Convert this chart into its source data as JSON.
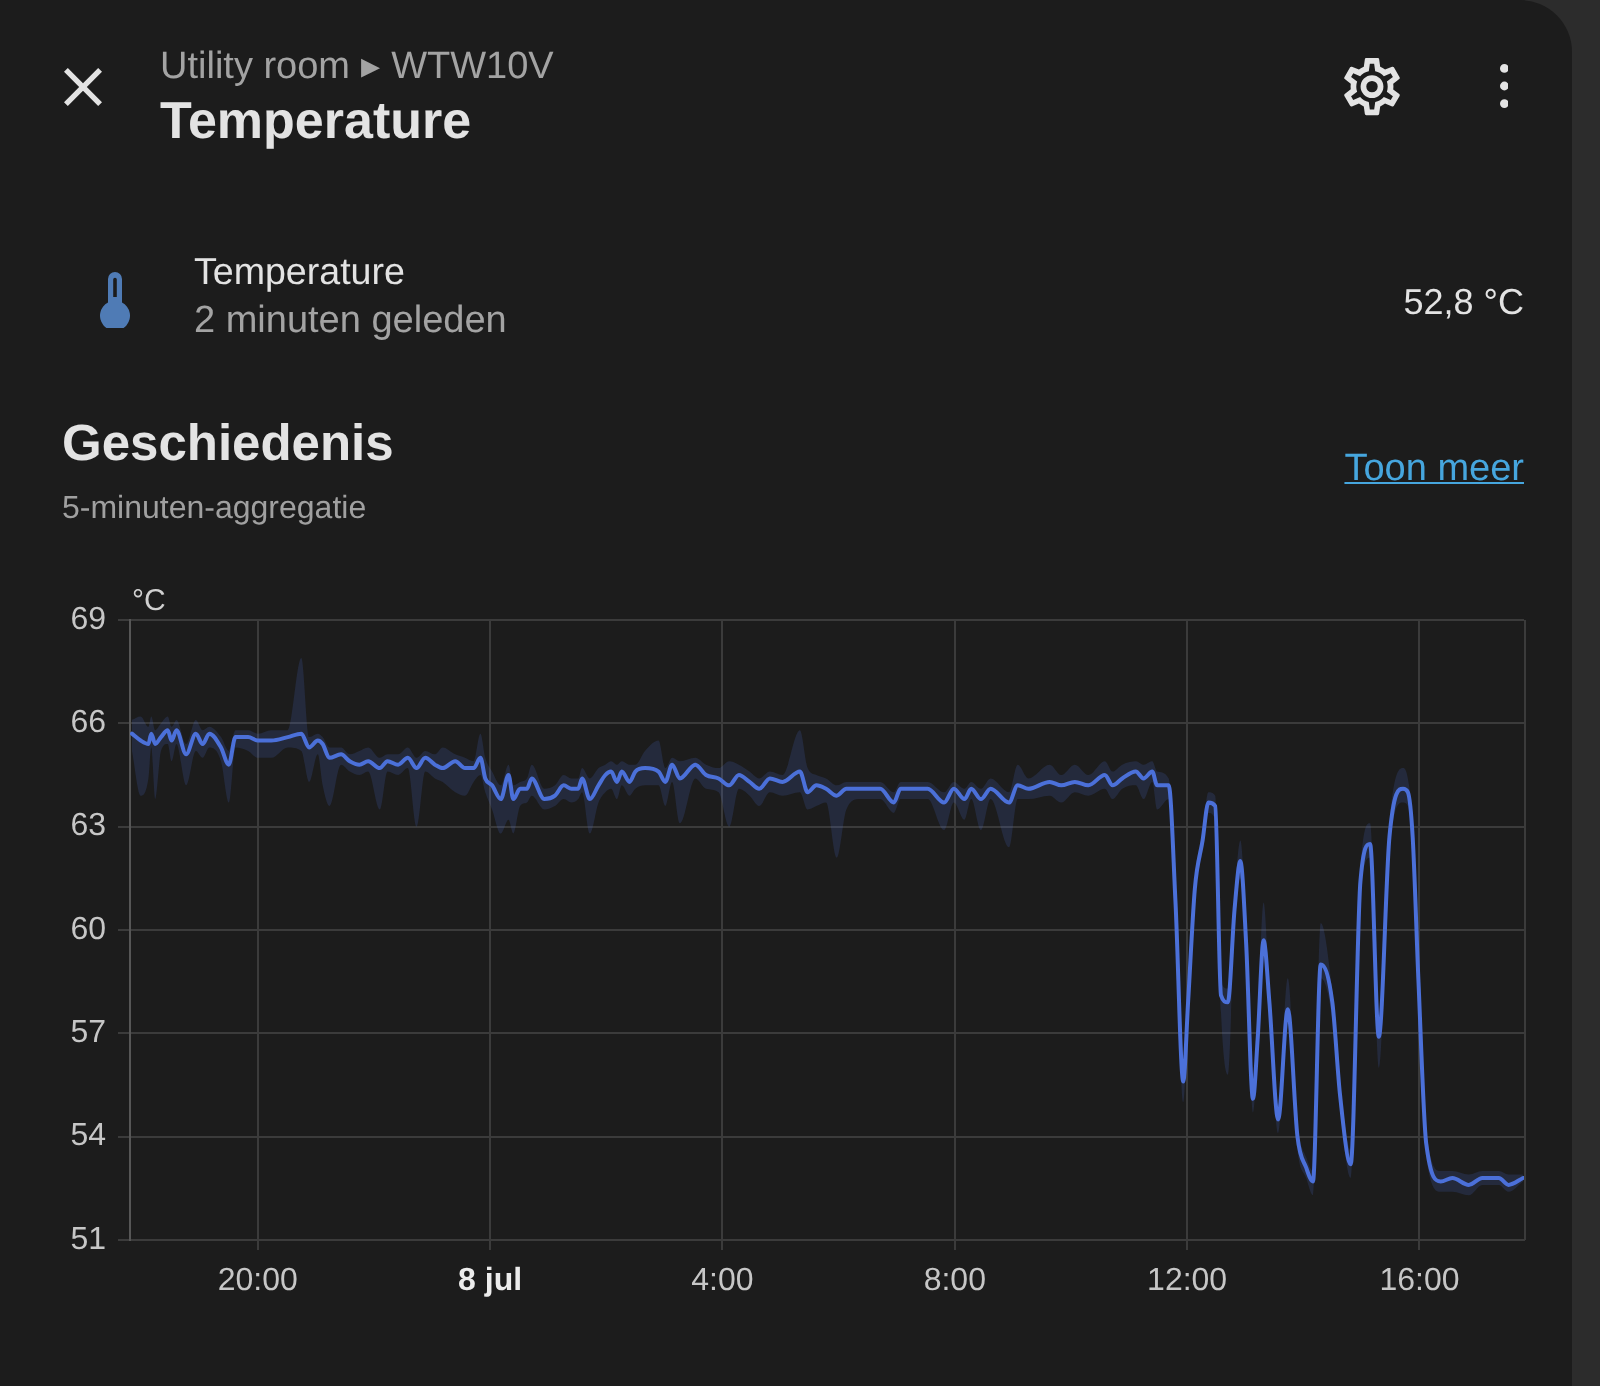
{
  "chart_data": {
    "type": "line",
    "title": "Geschiedenis",
    "subtitle": "5-minuten-aggregatie",
    "ylabel": "°C",
    "annotations": [
      "Utility room ▸ WTW10V",
      "Temperature",
      "Temperature",
      "2 minuten geleden",
      "52,8 °C",
      "Toon meer"
    ],
    "x": [
      "--07-07T17:50",
      "--07-07T17:59",
      "--07-07T18:07",
      "--07-07T18:10",
      "--07-07T18:14",
      "--07-07T18:20",
      "--07-07T18:27",
      "--07-07T18:31",
      "--07-07T18:36",
      "--07-07T18:46",
      "--07-07T18:56",
      "--07-07T19:03",
      "--07-07T19:10",
      "--07-07T19:22",
      "--07-07T19:30",
      "--07-07T19:37",
      "--07-07T19:50",
      "--07-07T20:00",
      "--07-07T20:14",
      "--07-07T20:31",
      "--07-07T20:45",
      "--07-07T20:53",
      "--07-07T21:02",
      "--07-07T21:07",
      "--07-07T21:14",
      "--07-07T21:26",
      "--07-07T21:35",
      "--07-07T21:45",
      "--07-07T21:54",
      "--07-07T22:06",
      "--07-07T22:14",
      "--07-07T22:25",
      "--07-07T22:35",
      "--07-07T22:44",
      "--07-07T22:53",
      "--07-07T23:03",
      "--07-07T23:11",
      "--07-07T23:24",
      "--07-07T23:34",
      "--07-07T23:43",
      "--07-07T23:50",
      "--07-07T23:55",
      "--07-08T00:02",
      "--07-08T00:11",
      "--07-08T00:19",
      "--07-08T00:24",
      "--07-08T00:31",
      "--07-08T00:38",
      "--07-08T00:43",
      "--07-08T00:56",
      "--07-08T01:07",
      "--07-08T01:16",
      "--07-08T01:24",
      "--07-08T01:31",
      "--07-08T01:35",
      "--07-08T01:43",
      "--07-08T01:52",
      "--07-08T01:59",
      "--07-08T02:05",
      "--07-08T02:11",
      "--07-08T02:16",
      "--07-08T02:24",
      "--07-08T02:30",
      "--07-08T02:40",
      "--07-08T02:54",
      "--07-08T03:01",
      "--07-08T03:08",
      "--07-08T03:16",
      "--07-08T03:32",
      "--07-08T03:43",
      "--07-08T03:56",
      "--07-08T04:07",
      "--07-08T04:17",
      "--07-08T04:28",
      "--07-08T04:38",
      "--07-08T04:49",
      "--07-08T05:02",
      "--07-08T05:20",
      "--07-08T05:28",
      "--07-08T05:37",
      "--07-08T05:47",
      "--07-08T05:58",
      "--07-08T06:08",
      "--07-08T06:22",
      "--07-08T06:43",
      "--07-08T06:57",
      "--07-08T07:04",
      "--07-08T07:32",
      "--07-08T07:49",
      "--07-08T07:59",
      "--07-08T08:10",
      "--07-08T08:17",
      "--07-08T08:27",
      "--07-08T08:37",
      "--07-08T08:56",
      "--07-08T09:05",
      "--07-08T09:16",
      "--07-08T09:38",
      "--07-08T09:50",
      "--07-08T10:04",
      "--07-08T10:18",
      "--07-08T10:35",
      "--07-08T10:43",
      "--07-08T10:53",
      "--07-08T11:07",
      "--07-08T11:15",
      "--07-08T11:24",
      "--07-08T11:29",
      "--07-08T11:41",
      "--07-08T11:48",
      "--07-08T11:56",
      "--07-08T12:01",
      "--07-08T12:08",
      "--07-08T12:16",
      "--07-08T12:22",
      "--07-08T12:29",
      "--07-08T12:35",
      "--07-08T12:42",
      "--07-08T12:49",
      "--07-08T12:55",
      "--07-08T13:01",
      "--07-08T13:08",
      "--07-08T13:13",
      "--07-08T13:19",
      "--07-08T13:25",
      "--07-08T13:34",
      "--07-08T13:44",
      "--07-08T13:54",
      "--07-08T14:03",
      "--07-08T14:10",
      "--07-08T14:18",
      "--07-08T14:30",
      "--07-08T14:38",
      "--07-08T14:49",
      "--07-08T14:59",
      "--07-08T15:09",
      "--07-08T15:18",
      "--07-08T15:29",
      "--07-08T15:43",
      "--07-08T15:48",
      "--07-08T15:53",
      "--07-08T15:59",
      "--07-08T16:07",
      "--07-08T16:22",
      "--07-08T16:34",
      "--07-08T16:51",
      "--07-08T17:05",
      "--07-08T17:22",
      "--07-08T17:32",
      "--07-08T17:47"
    ],
    "series": [
      {
        "color": "#4b70d9",
        "values": [
          65.7,
          65.5,
          65.4,
          65.7,
          65.4,
          65.6,
          65.8,
          65.5,
          65.8,
          65.1,
          65.7,
          65.4,
          65.7,
          65.3,
          64.8,
          65.6,
          65.6,
          65.5,
          65.5,
          65.6,
          65.7,
          65.3,
          65.5,
          65.4,
          65.0,
          65.1,
          64.9,
          64.8,
          64.9,
          64.7,
          64.9,
          64.8,
          65.0,
          64.7,
          65.0,
          64.8,
          64.7,
          64.9,
          64.7,
          64.7,
          65.0,
          64.4,
          64.2,
          63.8,
          64.5,
          63.8,
          64.1,
          64.1,
          64.4,
          63.8,
          63.9,
          64.2,
          64.1,
          64.1,
          64.4,
          63.8,
          64.2,
          64.5,
          64.6,
          64.3,
          64.6,
          64.3,
          64.6,
          64.7,
          64.6,
          64.3,
          64.8,
          64.4,
          64.8,
          64.5,
          64.4,
          64.2,
          64.5,
          64.3,
          64.1,
          64.4,
          64.3,
          64.6,
          64.0,
          64.2,
          64.1,
          63.9,
          64.1,
          64.1,
          64.1,
          63.7,
          64.1,
          64.1,
          63.7,
          64.1,
          63.8,
          64.1,
          63.8,
          64.1,
          63.7,
          64.2,
          64.1,
          64.3,
          64.2,
          64.3,
          64.2,
          64.5,
          64.2,
          64.4,
          64.6,
          64.4,
          64.6,
          64.2,
          64.2,
          60.8,
          55.6,
          57.9,
          61.2,
          62.6,
          63.7,
          63.6,
          58.1,
          57.9,
          60.6,
          62.0,
          59.6,
          55.1,
          56.9,
          59.7,
          57.9,
          54.5,
          57.7,
          54.0,
          53.1,
          52.7,
          59.0,
          57.9,
          55.2,
          53.2,
          61.4,
          62.5,
          56.9,
          62.7,
          64.1,
          64.0,
          62.7,
          58.5,
          53.8,
          52.7,
          52.8,
          52.6,
          52.8,
          52.8,
          52.6,
          52.8
        ],
        "lower": [
          65.2,
          63.9,
          64.4,
          65.3,
          63.8,
          65.2,
          65.4,
          64.9,
          65.4,
          64.2,
          65.2,
          65.0,
          65.3,
          64.9,
          63.7,
          65.3,
          65.2,
          65.0,
          65.0,
          65.3,
          65.2,
          64.3,
          65.1,
          64.2,
          63.6,
          64.8,
          64.6,
          64.5,
          64.6,
          63.5,
          64.6,
          64.5,
          64.7,
          63.0,
          64.6,
          64.4,
          64.3,
          64.0,
          63.9,
          64.3,
          64.5,
          64.0,
          63.5,
          62.8,
          63.2,
          62.8,
          63.6,
          63.7,
          63.9,
          63.5,
          63.6,
          63.8,
          63.7,
          63.8,
          64.0,
          62.8,
          63.7,
          64.0,
          64.1,
          63.8,
          64.2,
          63.9,
          64.1,
          64.2,
          64.2,
          63.6,
          64.3,
          63.1,
          64.4,
          64.1,
          64.0,
          63.0,
          64.1,
          63.9,
          63.6,
          64.0,
          63.9,
          64.0,
          63.5,
          63.6,
          63.7,
          62.1,
          63.5,
          63.8,
          63.8,
          63.4,
          63.8,
          63.8,
          62.9,
          63.7,
          63.2,
          63.8,
          62.9,
          63.8,
          62.4,
          63.8,
          63.8,
          63.9,
          63.7,
          64.0,
          63.9,
          64.1,
          63.8,
          64.1,
          64.2,
          63.8,
          64.3,
          63.5,
          63.8,
          60.5,
          55.0,
          57.5,
          60.9,
          62.3,
          63.4,
          63.2,
          57.6,
          55.8,
          60.2,
          61.5,
          59.2,
          54.7,
          56.5,
          59.3,
          57.5,
          54.1,
          57.3,
          53.6,
          52.8,
          52.3,
          58.6,
          57.4,
          54.8,
          52.8,
          61.0,
          62.1,
          56.0,
          62.3,
          63.7,
          63.6,
          62.3,
          58.1,
          53.4,
          52.4,
          52.4,
          52.3,
          52.6,
          52.6,
          52.4,
          52.7
        ],
        "upper": [
          66.1,
          66.2,
          65.9,
          66.2,
          65.8,
          66.0,
          66.2,
          65.9,
          66.1,
          65.4,
          66.1,
          65.8,
          65.9,
          65.6,
          65.2,
          65.8,
          65.8,
          65.7,
          65.8,
          65.8,
          67.9,
          65.6,
          65.7,
          65.6,
          65.3,
          65.3,
          65.1,
          65.2,
          65.3,
          65.0,
          65.1,
          65.1,
          65.3,
          65.0,
          65.2,
          65.1,
          65.3,
          65.1,
          65.0,
          64.9,
          65.7,
          65.0,
          64.6,
          64.2,
          64.8,
          64.2,
          64.3,
          64.4,
          64.8,
          64.1,
          64.2,
          64.5,
          64.4,
          64.4,
          64.7,
          64.4,
          64.7,
          64.8,
          64.9,
          64.8,
          64.9,
          64.8,
          64.8,
          65.2,
          65.5,
          64.7,
          65.0,
          64.9,
          65.0,
          64.8,
          64.7,
          64.9,
          64.8,
          64.6,
          64.4,
          64.6,
          64.5,
          65.8,
          64.7,
          64.5,
          64.4,
          64.2,
          64.3,
          64.3,
          64.3,
          64.0,
          64.3,
          64.3,
          64.0,
          64.3,
          64.1,
          64.3,
          64.1,
          64.4,
          64.0,
          64.8,
          64.4,
          64.8,
          64.5,
          64.8,
          64.5,
          64.9,
          64.6,
          64.8,
          64.9,
          64.8,
          64.9,
          64.6,
          64.4,
          61.2,
          56.0,
          58.2,
          61.5,
          62.9,
          64.0,
          63.9,
          58.5,
          58.3,
          61.0,
          62.6,
          60.0,
          55.5,
          57.3,
          60.8,
          58.3,
          54.9,
          58.6,
          54.4,
          53.4,
          53.0,
          60.2,
          58.2,
          55.6,
          53.6,
          61.8,
          63.1,
          57.3,
          63.1,
          64.7,
          64.4,
          63.1,
          58.9,
          54.2,
          53.0,
          53.0,
          52.9,
          53.0,
          53.0,
          52.9,
          52.9
        ]
      }
    ],
    "xlim": [
      "--07-07T17:48",
      "--07-08T17:48"
    ],
    "ylim": [
      51,
      69
    ],
    "xticks": [
      {
        "value": "--07-07T20:00",
        "label": "20:00"
      },
      {
        "value": "--07-08T00:00",
        "label": "8 jul"
      },
      {
        "value": "--07-08T04:00",
        "label": "4:00"
      },
      {
        "value": "--07-08T08:00",
        "label": "8:00"
      },
      {
        "value": "--07-08T12:00",
        "label": "12:00"
      },
      {
        "value": "--07-08T16:00",
        "label": "16:00"
      }
    ],
    "yticks": [
      51,
      54,
      57,
      60,
      63,
      66,
      69
    ],
    "grid": true,
    "marker": "none",
    "line_style": "solid"
  }
}
